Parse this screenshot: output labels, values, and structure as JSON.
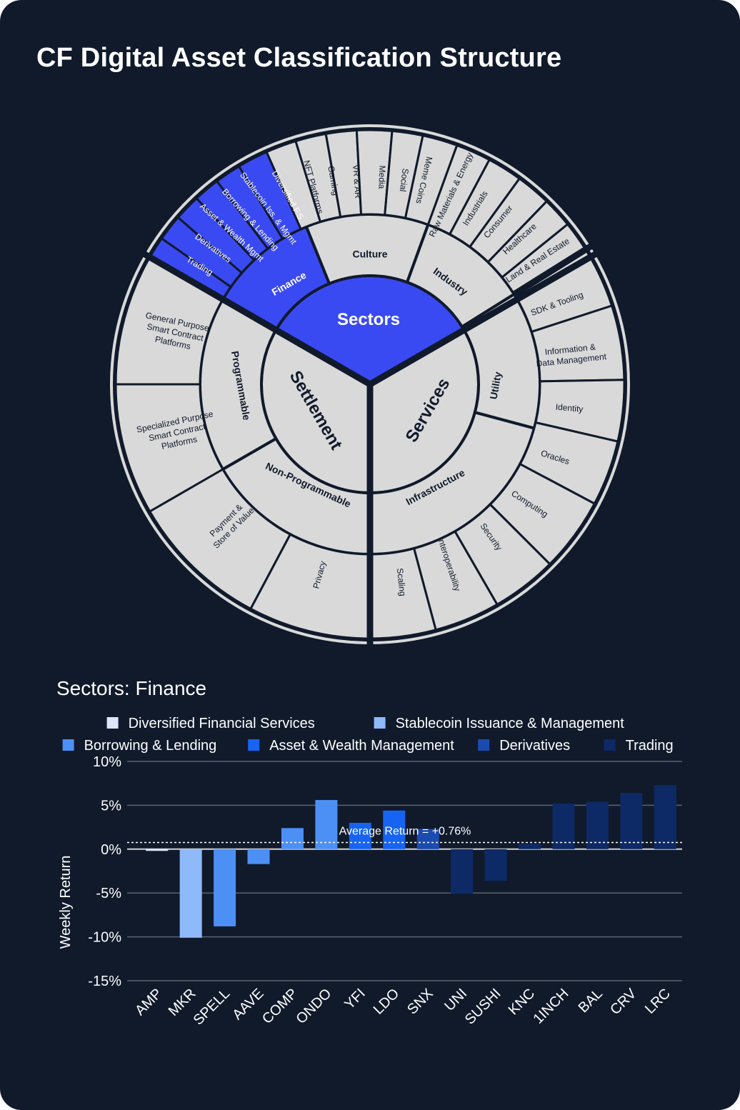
{
  "header": {
    "title": "CF Digital Asset Classification Structure"
  },
  "sunburst": {
    "center": {
      "sectors_label": "Sectors",
      "settlement_label": "Settlement",
      "services_label": "Services",
      "settlement_category": "Settlement",
      "services_category": "Services"
    },
    "middle_ring": {
      "finance": "Finance",
      "culture": "Culture",
      "industry": "Industry",
      "utility": "Utility",
      "infrastructure": "Infrastructure",
      "non_programmable": "Non-Programmable",
      "programmable": "Programmable"
    },
    "outer_ring": {
      "diversified_fs": "Diversified F.S.",
      "stablecoin": "Stablecoin Iss. & Mgmt",
      "borrowing": "Borrowing & Lending",
      "asset_wealth": "Asset & Wealth Mgmt",
      "derivatives": "Derivatives",
      "trading": "Trading",
      "nft_platforms": "NFT Platforms",
      "gaming": "Gaming",
      "vr_ar": "VR & AR",
      "media": "Media",
      "social": "Social",
      "meme_coins": "Meme Coins",
      "raw_materials": "Raw Materials & Energy",
      "industrials": "Industrials",
      "consumer": "Consumer",
      "healthcare": "Healthcare",
      "land_real_estate": "Land & Real Estate",
      "sdk_tooling": "SDK & Tooling",
      "info_data_1": "Information &",
      "info_data_2": "Data Management",
      "identity": "Identity",
      "oracles": "Oracles",
      "computing": "Computing",
      "security": "Security",
      "interoperability": "Interoperability",
      "scaling": "Scaling",
      "privacy": "Privacy",
      "payment_1": "Payment &",
      "payment_2": "Store of Value",
      "specialized_1": "Specialized Purpose",
      "specialized_2": "Smart Contract",
      "specialized_3": "Platforms",
      "general_1": "General Purpose",
      "general_2": "Smart Contract",
      "general_3": "Platforms"
    },
    "colors": {
      "highlight": "#3a4af2",
      "segment": "#d9d9d9",
      "border": "#101a2b"
    }
  },
  "chart_data": {
    "type": "bar",
    "title": "Sectors: Finance",
    "ylabel": "Weekly Return",
    "xlabel": "",
    "ylim": [
      -15,
      10
    ],
    "yticks": [
      10,
      5,
      0,
      -5,
      -10,
      -15
    ],
    "ytick_labels": [
      "10%",
      "5%",
      "0%",
      "-5%",
      "-10%",
      "-15%"
    ],
    "grid": true,
    "average": {
      "value": 0.76,
      "label": "Average Return = +0.76%"
    },
    "legend": [
      {
        "name": "Diversified Financial Services",
        "color": "#dbe6fb"
      },
      {
        "name": "Stablecoin Issuance & Management",
        "color": "#8fbafa"
      },
      {
        "name": "Borrowing & Lending",
        "color": "#4d90f5"
      },
      {
        "name": "Asset & Wealth Management",
        "color": "#1764f2"
      },
      {
        "name": "Derivatives",
        "color": "#1c4bb0"
      },
      {
        "name": "Trading",
        "color": "#0d2a66"
      }
    ],
    "bars": [
      {
        "label": "AMP",
        "value": -0.2,
        "group": 0
      },
      {
        "label": "MKR",
        "value": -10.1,
        "group": 1
      },
      {
        "label": "SPELL",
        "value": -8.8,
        "group": 2
      },
      {
        "label": "AAVE",
        "value": -1.7,
        "group": 2
      },
      {
        "label": "COMP",
        "value": 2.4,
        "group": 2
      },
      {
        "label": "ONDO",
        "value": 5.6,
        "group": 2
      },
      {
        "label": "YFI",
        "value": 3.0,
        "group": 3
      },
      {
        "label": "LDO",
        "value": 4.4,
        "group": 3
      },
      {
        "label": "SNX",
        "value": 2.3,
        "group": 4
      },
      {
        "label": "UNI",
        "value": -5.1,
        "group": 5
      },
      {
        "label": "SUSHI",
        "value": -3.6,
        "group": 5
      },
      {
        "label": "KNC",
        "value": 0.6,
        "group": 5
      },
      {
        "label": "1INCH",
        "value": 5.2,
        "group": 5
      },
      {
        "label": "BAL",
        "value": 5.4,
        "group": 5
      },
      {
        "label": "CRV",
        "value": 6.4,
        "group": 5
      },
      {
        "label": "LRC",
        "value": 7.3,
        "group": 5
      }
    ]
  }
}
